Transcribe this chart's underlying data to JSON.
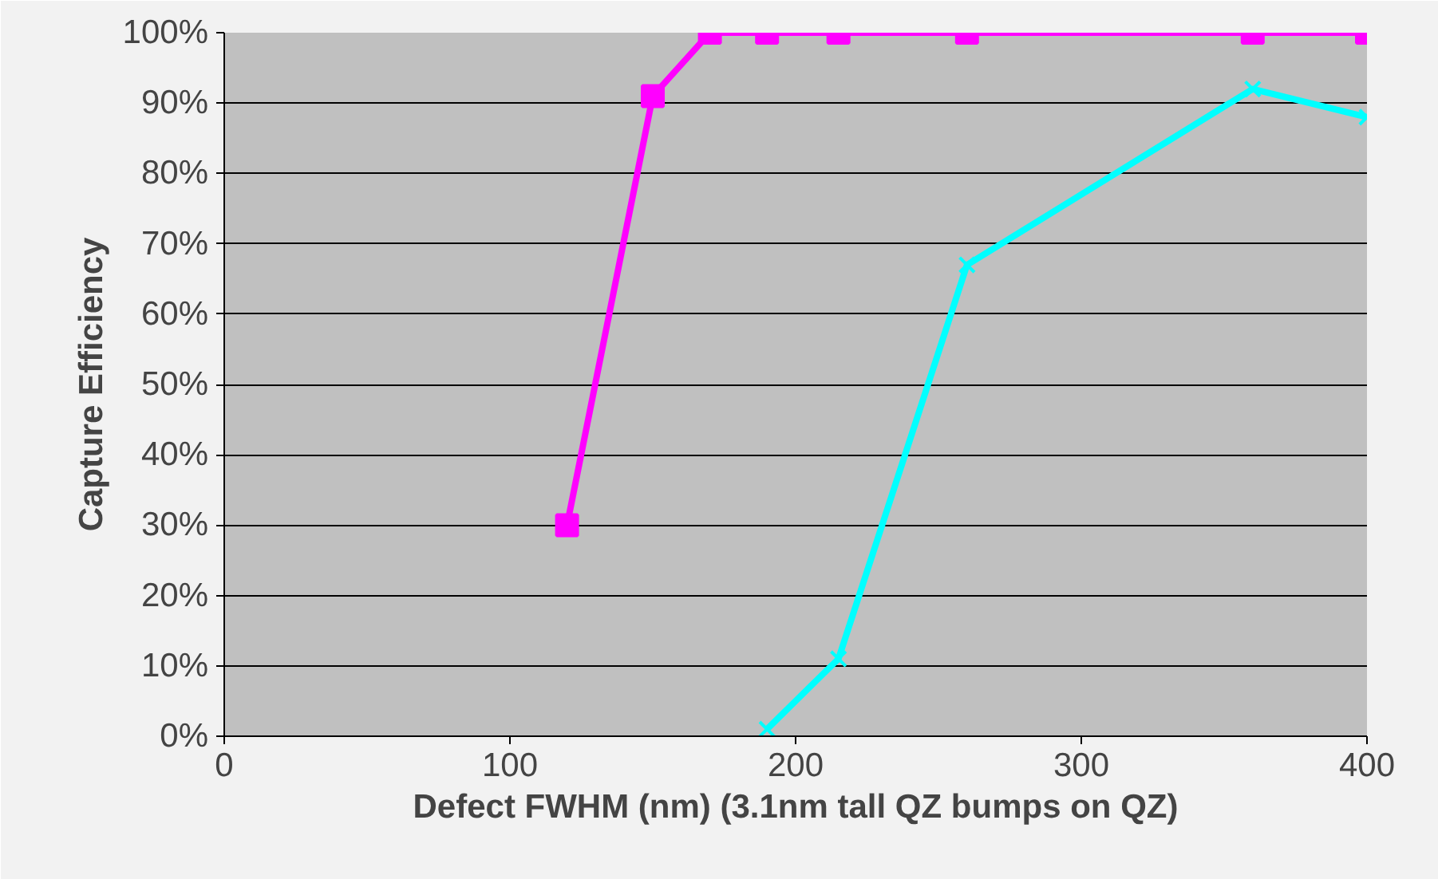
{
  "chart_data": {
    "type": "line",
    "xlabel": "Defect FWHM (nm) (3.1nm tall QZ bumps on QZ)",
    "ylabel": "Capture Efficiency",
    "xlim": [
      0,
      400
    ],
    "xticks": [
      0,
      100,
      200,
      300,
      400
    ],
    "ylim": [
      0,
      100
    ],
    "yticks": [
      {
        "value": 0,
        "label": "0%"
      },
      {
        "value": 10,
        "label": "10%"
      },
      {
        "value": 20,
        "label": "20%"
      },
      {
        "value": 30,
        "label": "30%"
      },
      {
        "value": 40,
        "label": "40%"
      },
      {
        "value": 50,
        "label": "50%"
      },
      {
        "value": 60,
        "label": "60%"
      },
      {
        "value": 70,
        "label": "70%"
      },
      {
        "value": 80,
        "label": "80%"
      },
      {
        "value": 90,
        "label": "90%"
      },
      {
        "value": 100,
        "label": "100%"
      }
    ],
    "grid": "y",
    "line_style": "solid",
    "series": [
      {
        "color": "#ff00ff",
        "marker": "square",
        "x": [
          120,
          150,
          170,
          190,
          215,
          260,
          360,
          400
        ],
        "values": [
          30,
          91,
          100,
          100,
          100,
          100,
          100,
          100
        ]
      },
      {
        "color": "#00ffff",
        "marker": "cross",
        "x": [
          190,
          215,
          260,
          360,
          400
        ],
        "values": [
          1,
          11,
          67,
          92,
          88
        ]
      }
    ]
  }
}
